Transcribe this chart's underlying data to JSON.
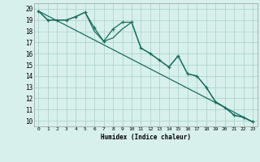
{
  "xlabel": "Humidex (Indice chaleur)",
  "bg_color": "#d8f0ec",
  "grid_color": "#aed4cc",
  "line_color": "#1a6e60",
  "xlim": [
    -0.5,
    23.5
  ],
  "ylim": [
    9.5,
    20.5
  ],
  "xticks": [
    0,
    1,
    2,
    3,
    4,
    5,
    6,
    7,
    8,
    9,
    10,
    11,
    12,
    13,
    14,
    15,
    16,
    17,
    18,
    19,
    20,
    21,
    22,
    23
  ],
  "yticks": [
    10,
    11,
    12,
    13,
    14,
    15,
    16,
    17,
    18,
    19,
    20
  ],
  "series1_x": [
    0,
    1,
    2,
    3,
    4,
    5,
    6,
    7,
    8,
    9,
    10,
    11,
    12,
    13,
    14,
    15,
    16,
    17,
    18,
    19,
    20,
    21,
    22,
    23
  ],
  "series1_y": [
    19.8,
    19.0,
    19.0,
    19.0,
    19.3,
    19.7,
    18.3,
    17.1,
    18.2,
    18.8,
    18.8,
    16.5,
    16.0,
    15.4,
    14.8,
    15.8,
    14.2,
    14.0,
    13.0,
    11.7,
    11.2,
    10.5,
    10.3,
    9.9
  ],
  "series2_x": [
    0,
    1,
    2,
    3,
    4,
    5,
    6,
    7,
    8,
    9,
    10,
    11,
    12,
    13,
    14,
    15,
    16,
    17,
    18,
    19,
    20,
    21,
    22,
    23
  ],
  "series2_y": [
    19.8,
    19.0,
    19.0,
    19.0,
    19.3,
    19.7,
    18.0,
    17.1,
    17.4,
    18.2,
    18.8,
    16.5,
    16.0,
    15.4,
    14.8,
    15.8,
    14.2,
    14.0,
    13.0,
    11.7,
    11.2,
    10.5,
    10.3,
    9.9
  ],
  "trend_x": [
    0,
    23
  ],
  "trend_y": [
    19.8,
    9.9
  ]
}
